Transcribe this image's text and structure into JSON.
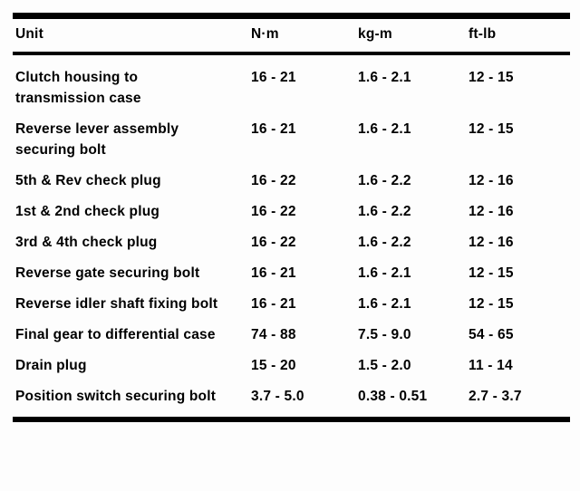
{
  "table": {
    "columns": [
      "Unit",
      "N·m",
      "kg-m",
      "ft-lb"
    ],
    "rows": [
      {
        "unit": "Clutch housing to transmission case",
        "nm": "16 - 21",
        "kgm": "1.6 - 2.1",
        "ftlb": "12 - 15"
      },
      {
        "unit": "Reverse lever assembly securing bolt",
        "nm": "16 - 21",
        "kgm": "1.6 - 2.1",
        "ftlb": "12 - 15"
      },
      {
        "unit": "5th & Rev check plug",
        "nm": "16 - 22",
        "kgm": "1.6 - 2.2",
        "ftlb": "12 - 16"
      },
      {
        "unit": "1st & 2nd check plug",
        "nm": "16 - 22",
        "kgm": "1.6 - 2.2",
        "ftlb": "12 - 16"
      },
      {
        "unit": "3rd & 4th check plug",
        "nm": "16 - 22",
        "kgm": "1.6 - 2.2",
        "ftlb": "12 - 16"
      },
      {
        "unit": "Reverse gate securing bolt",
        "nm": "16 - 21",
        "kgm": "1.6 - 2.1",
        "ftlb": "12 - 15"
      },
      {
        "unit": "Reverse idler shaft fixing bolt",
        "nm": "16 - 21",
        "kgm": "1.6 - 2.1",
        "ftlb": "12 - 15"
      },
      {
        "unit": "Final gear to differential case",
        "nm": "74 - 88",
        "kgm": "7.5 - 9.0",
        "ftlb": "54 - 65"
      },
      {
        "unit": "Drain plug",
        "nm": "15 - 20",
        "kgm": "1.5 - 2.0",
        "ftlb": "11 - 14"
      },
      {
        "unit": "Position switch securing bolt",
        "nm": "3.7 - 5.0",
        "kgm": "0.38 - 0.51",
        "ftlb": "2.7 - 3.7"
      }
    ]
  },
  "colors": {
    "ink": "#000000",
    "paper": "#fdfdfd"
  }
}
